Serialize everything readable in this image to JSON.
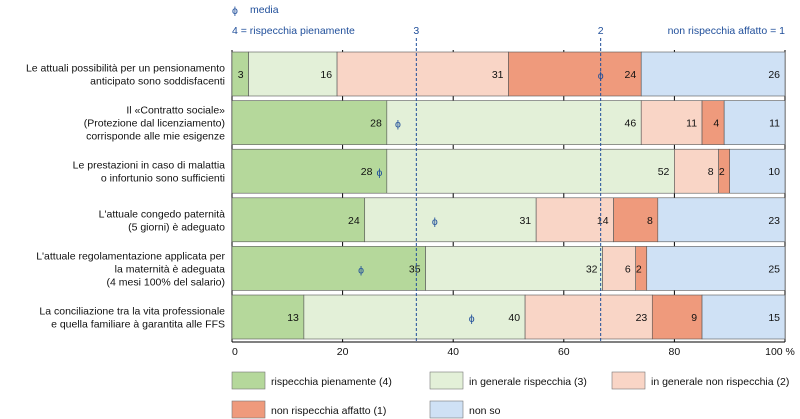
{
  "chart_data": {
    "type": "bar",
    "orientation": "horizontal",
    "stacked": true,
    "unit": "%",
    "xlim": [
      0,
      100
    ],
    "xticks": [
      "0",
      "20",
      "40",
      "60",
      "80",
      "100 %"
    ],
    "categories": [
      [
        "Le attuali possibilità per un pensionamento",
        "anticipato sono soddisfacenti"
      ],
      [
        "Il «Contratto sociale»",
        "(Protezione dal licenziamento)",
        "corrisponde alle mie esigenze"
      ],
      [
        "Le prestazioni in caso di malattia",
        "o infortunio sono sufficienti"
      ],
      [
        "L'attuale congedo paternità",
        "(5 giorni) è adeguato"
      ],
      [
        "L'attuale regolamentazione applicata per",
        "la maternità è adeguata",
        "(4 mesi 100% del salario)"
      ],
      [
        "La conciliazione tra la vita professionale",
        "e quella familiare à garantita alle FFS"
      ]
    ],
    "series": [
      {
        "name": "rispecchia pienamente (4)",
        "color": "#b5d89b",
        "values": [
          3,
          28,
          28,
          24,
          35,
          13
        ]
      },
      {
        "name": "in generale rispecchia (3)",
        "color": "#e3f0d8",
        "values": [
          16,
          46,
          52,
          31,
          32,
          40
        ]
      },
      {
        "name": "in generale non rispecchia (2)",
        "color": "#f9d5c6",
        "values": [
          31,
          11,
          8,
          14,
          6,
          23
        ]
      },
      {
        "name": "non rispecchia affatto (1)",
        "color": "#ef9a7c",
        "values": [
          24,
          4,
          2,
          8,
          2,
          9
        ]
      },
      {
        "name": "non so",
        "color": "#cfe1f5",
        "values": [
          26,
          11,
          10,
          23,
          25,
          15
        ]
      }
    ],
    "mean": {
      "label": "media",
      "symbol": "ϕ",
      "values": [
        2.0,
        3.1,
        3.2,
        2.9,
        3.3,
        2.7
      ],
      "scale": {
        "left_label": "4 = rispecchia pienamente",
        "right_label": "non rispecchia affatto = 1",
        "mid_labels": [
          "3",
          "2"
        ]
      }
    },
    "legend_position": "bottom"
  }
}
